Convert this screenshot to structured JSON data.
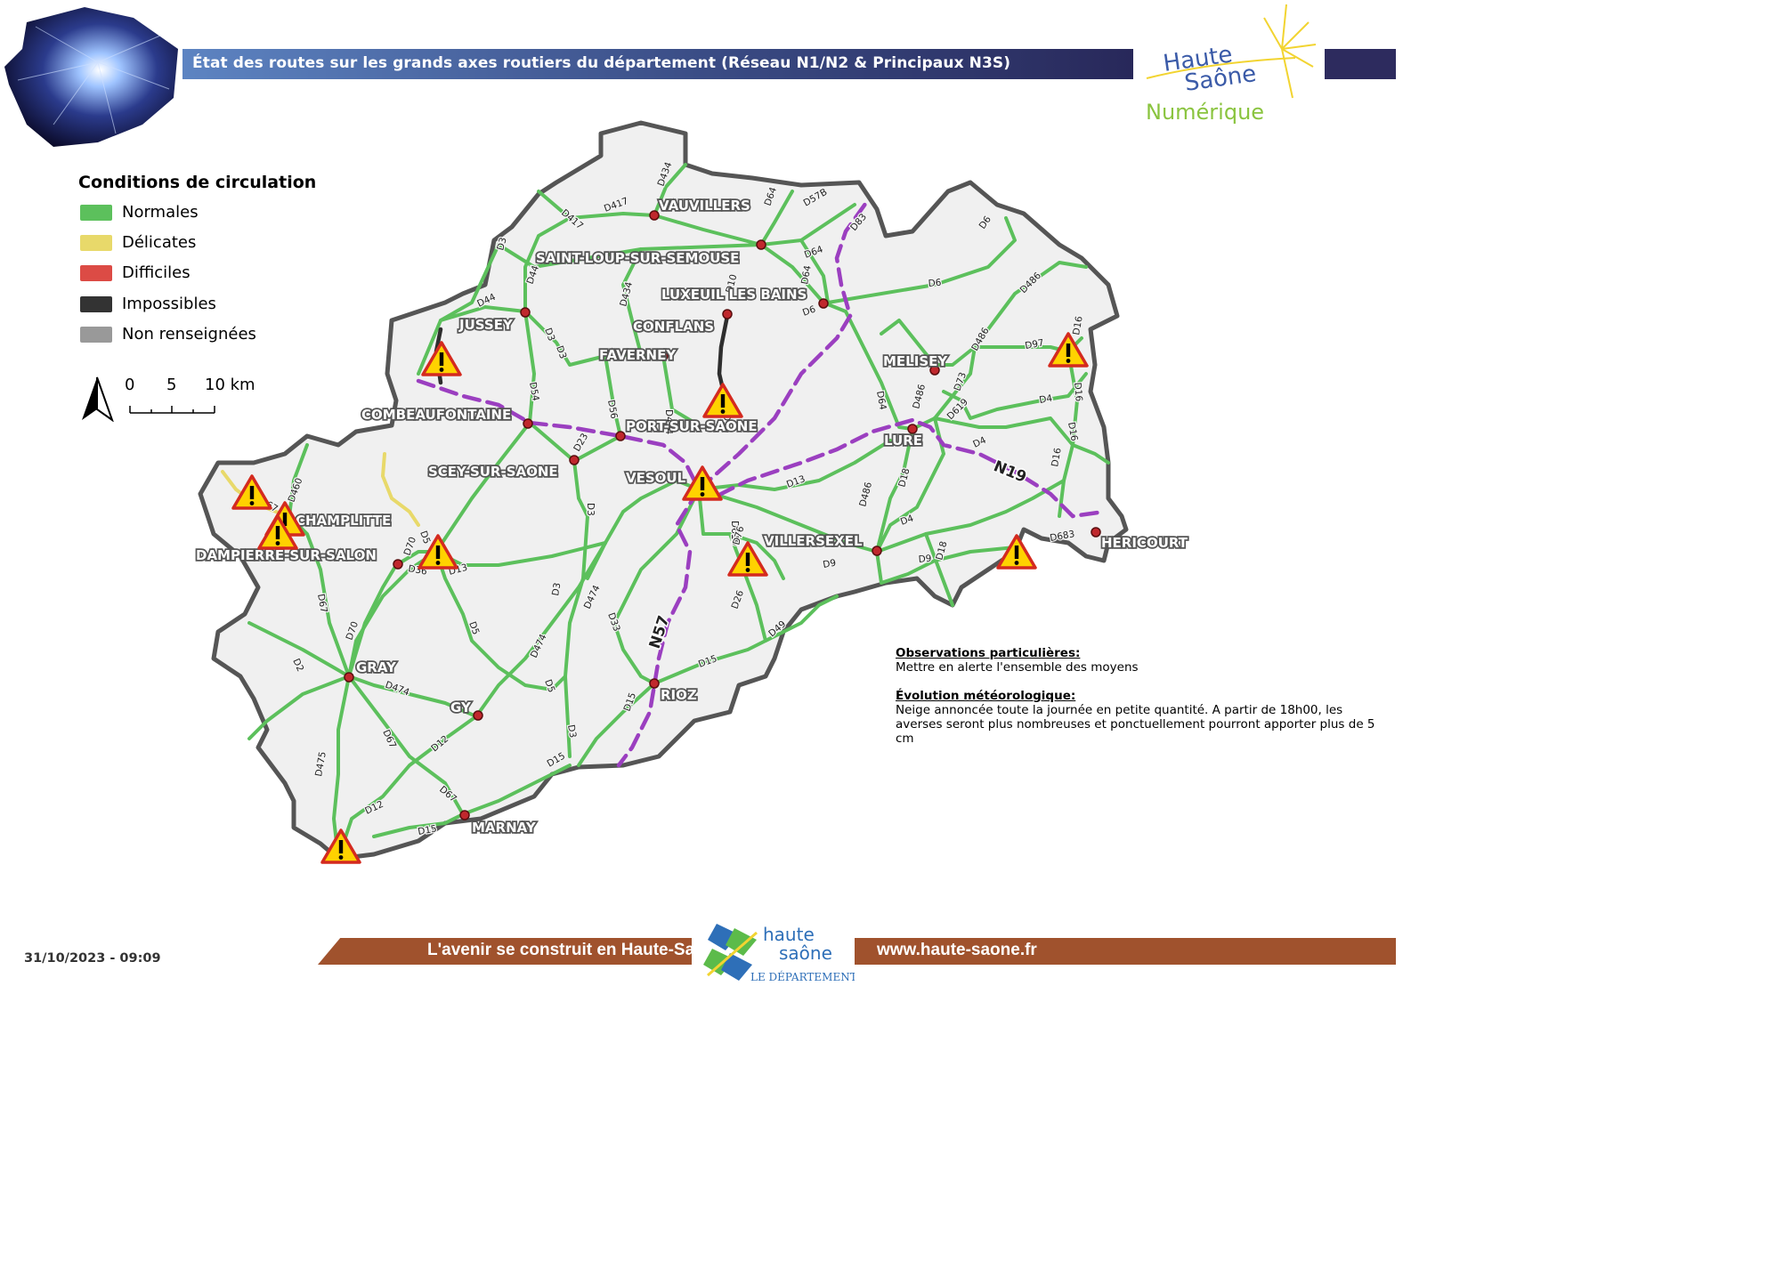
{
  "header": {
    "title": "État des routes sur les grands axes routiers du département (Réseau N1/N2 & Principaux N3S)",
    "logo_line1": "Haute",
    "logo_line2": "Saône",
    "logo_line3": "Numérique"
  },
  "legend": {
    "title": "Conditions de circulation",
    "items": [
      {
        "label": "Normales",
        "color": "#5cc05c"
      },
      {
        "label": "Délicates",
        "color": "#e8d96a"
      },
      {
        "label": "Difficiles",
        "color": "#dc4b45"
      },
      {
        "label": "Impossibles",
        "color": "#333333"
      },
      {
        "label": "Non renseignées",
        "color": "#999999"
      }
    ]
  },
  "scale": {
    "labels": [
      "0",
      "5",
      "10 km"
    ]
  },
  "colors": {
    "normal": "#5cc05c",
    "delicate": "#e8d96a",
    "impossible": "#2e2e2e",
    "national": "#9b3fc0",
    "border": "#555555",
    "territory": "#f0f0f0",
    "town": "#c0282d",
    "warning": "#ffd200"
  },
  "towns": [
    {
      "name": "VAUVILLERS"
    },
    {
      "name": "SAINT-LOUP-SUR-SEMOUSE"
    },
    {
      "name": "LUXEUIL LES BAINS"
    },
    {
      "name": "CONFLANS"
    },
    {
      "name": "JUSSEY"
    },
    {
      "name": "FAVERNEY"
    },
    {
      "name": "MELISEY"
    },
    {
      "name": "COMBEAUFONTAINE"
    },
    {
      "name": "PORT-SUR-SAONE"
    },
    {
      "name": "LURE"
    },
    {
      "name": "SCEY-SUR-SAONE"
    },
    {
      "name": "VESOUL"
    },
    {
      "name": "CHAMPLITTE"
    },
    {
      "name": "DAMPIERRE-SUR-SALON"
    },
    {
      "name": "VILLERSEXEL"
    },
    {
      "name": "HERICOURT"
    },
    {
      "name": "GRAY"
    },
    {
      "name": "GY"
    },
    {
      "name": "RIOZ"
    },
    {
      "name": "MARNAY"
    }
  ],
  "national_roads": [
    "N19",
    "N57"
  ],
  "road_labels": [
    "D417",
    "D434",
    "D417",
    "D64",
    "D57B",
    "D3",
    "D44",
    "D83",
    "D64",
    "D10",
    "D6",
    "D434",
    "D44",
    "D64",
    "D6",
    "D486",
    "D6",
    "D3",
    "D3",
    "D97",
    "D16",
    "D54",
    "D434",
    "D486",
    "D73",
    "D10",
    "D16",
    "D56",
    "D64",
    "D486",
    "D4",
    "D16",
    "D23",
    "D619",
    "D4",
    "D16",
    "D3",
    "D13",
    "D18",
    "D619",
    "D486",
    "D460",
    "D67",
    "D70",
    "D5",
    "D4",
    "D9",
    "D683",
    "D36",
    "D13",
    "D76",
    "D18",
    "D9",
    "D67",
    "D3",
    "D474",
    "D26",
    "D33",
    "D2",
    "D5",
    "D49",
    "D70",
    "D474",
    "D474",
    "D5",
    "D15",
    "D67",
    "D12",
    "D15",
    "D3",
    "D475",
    "D67",
    "D15",
    "D12",
    "D15"
  ],
  "observations": {
    "heading": "Observations particulières:",
    "text": "Mettre en alerte l'ensemble des moyens"
  },
  "weather": {
    "heading": "Évolution météorologique:",
    "text": "Neige annoncée toute la journée en petite quantité. A partir de 18h00, les averses seront plus nombreuses et ponctuellement pourront apporter plus de 5 cm"
  },
  "footer": {
    "timestamp": "31/10/2023 - 09:09",
    "slogan": "L'avenir se construit en Haute-Saône",
    "logo_line1": "haute",
    "logo_line2": "saône",
    "logo_line3": "LE DÉPARTEMENT",
    "website": "www.haute-saone.fr"
  }
}
